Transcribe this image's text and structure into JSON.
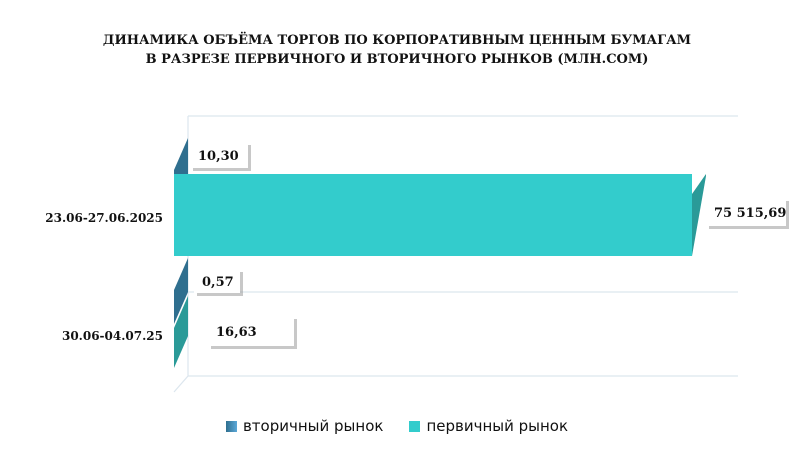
{
  "title": {
    "line1": "ДИНАМИКА ОБЪЁМА ТОРГОВ ПО КОРПОРАТИВНЫМ ЦЕННЫМ БУМАГАМ",
    "line2": "В РАЗРЕЗЕ ПЕРВИЧНОГО И ВТОРИЧНОГО РЫНКОВ  (МЛН.СОМ)"
  },
  "colors": {
    "primary": "#33CCCC",
    "primary_dark": "#2A9A98",
    "secondary": "#2F6F8F",
    "secondary_light": "#5BA8D8",
    "grid": "#DCE6EE"
  },
  "chart_data": {
    "type": "bar",
    "orientation": "horizontal",
    "style": "3d",
    "categories": [
      "23.06-27.06.2025",
      "30.06-04.07.25"
    ],
    "series": [
      {
        "name": "вторичный рынок",
        "values": [
          10.3,
          0.57
        ],
        "labels": [
          "10,30",
          "0,57"
        ]
      },
      {
        "name": "первичный рынок",
        "values": [
          75515.69,
          16.63
        ],
        "labels": [
          "75 515,69",
          "16,63"
        ]
      }
    ],
    "grid": true,
    "legend_position": "bottom"
  }
}
